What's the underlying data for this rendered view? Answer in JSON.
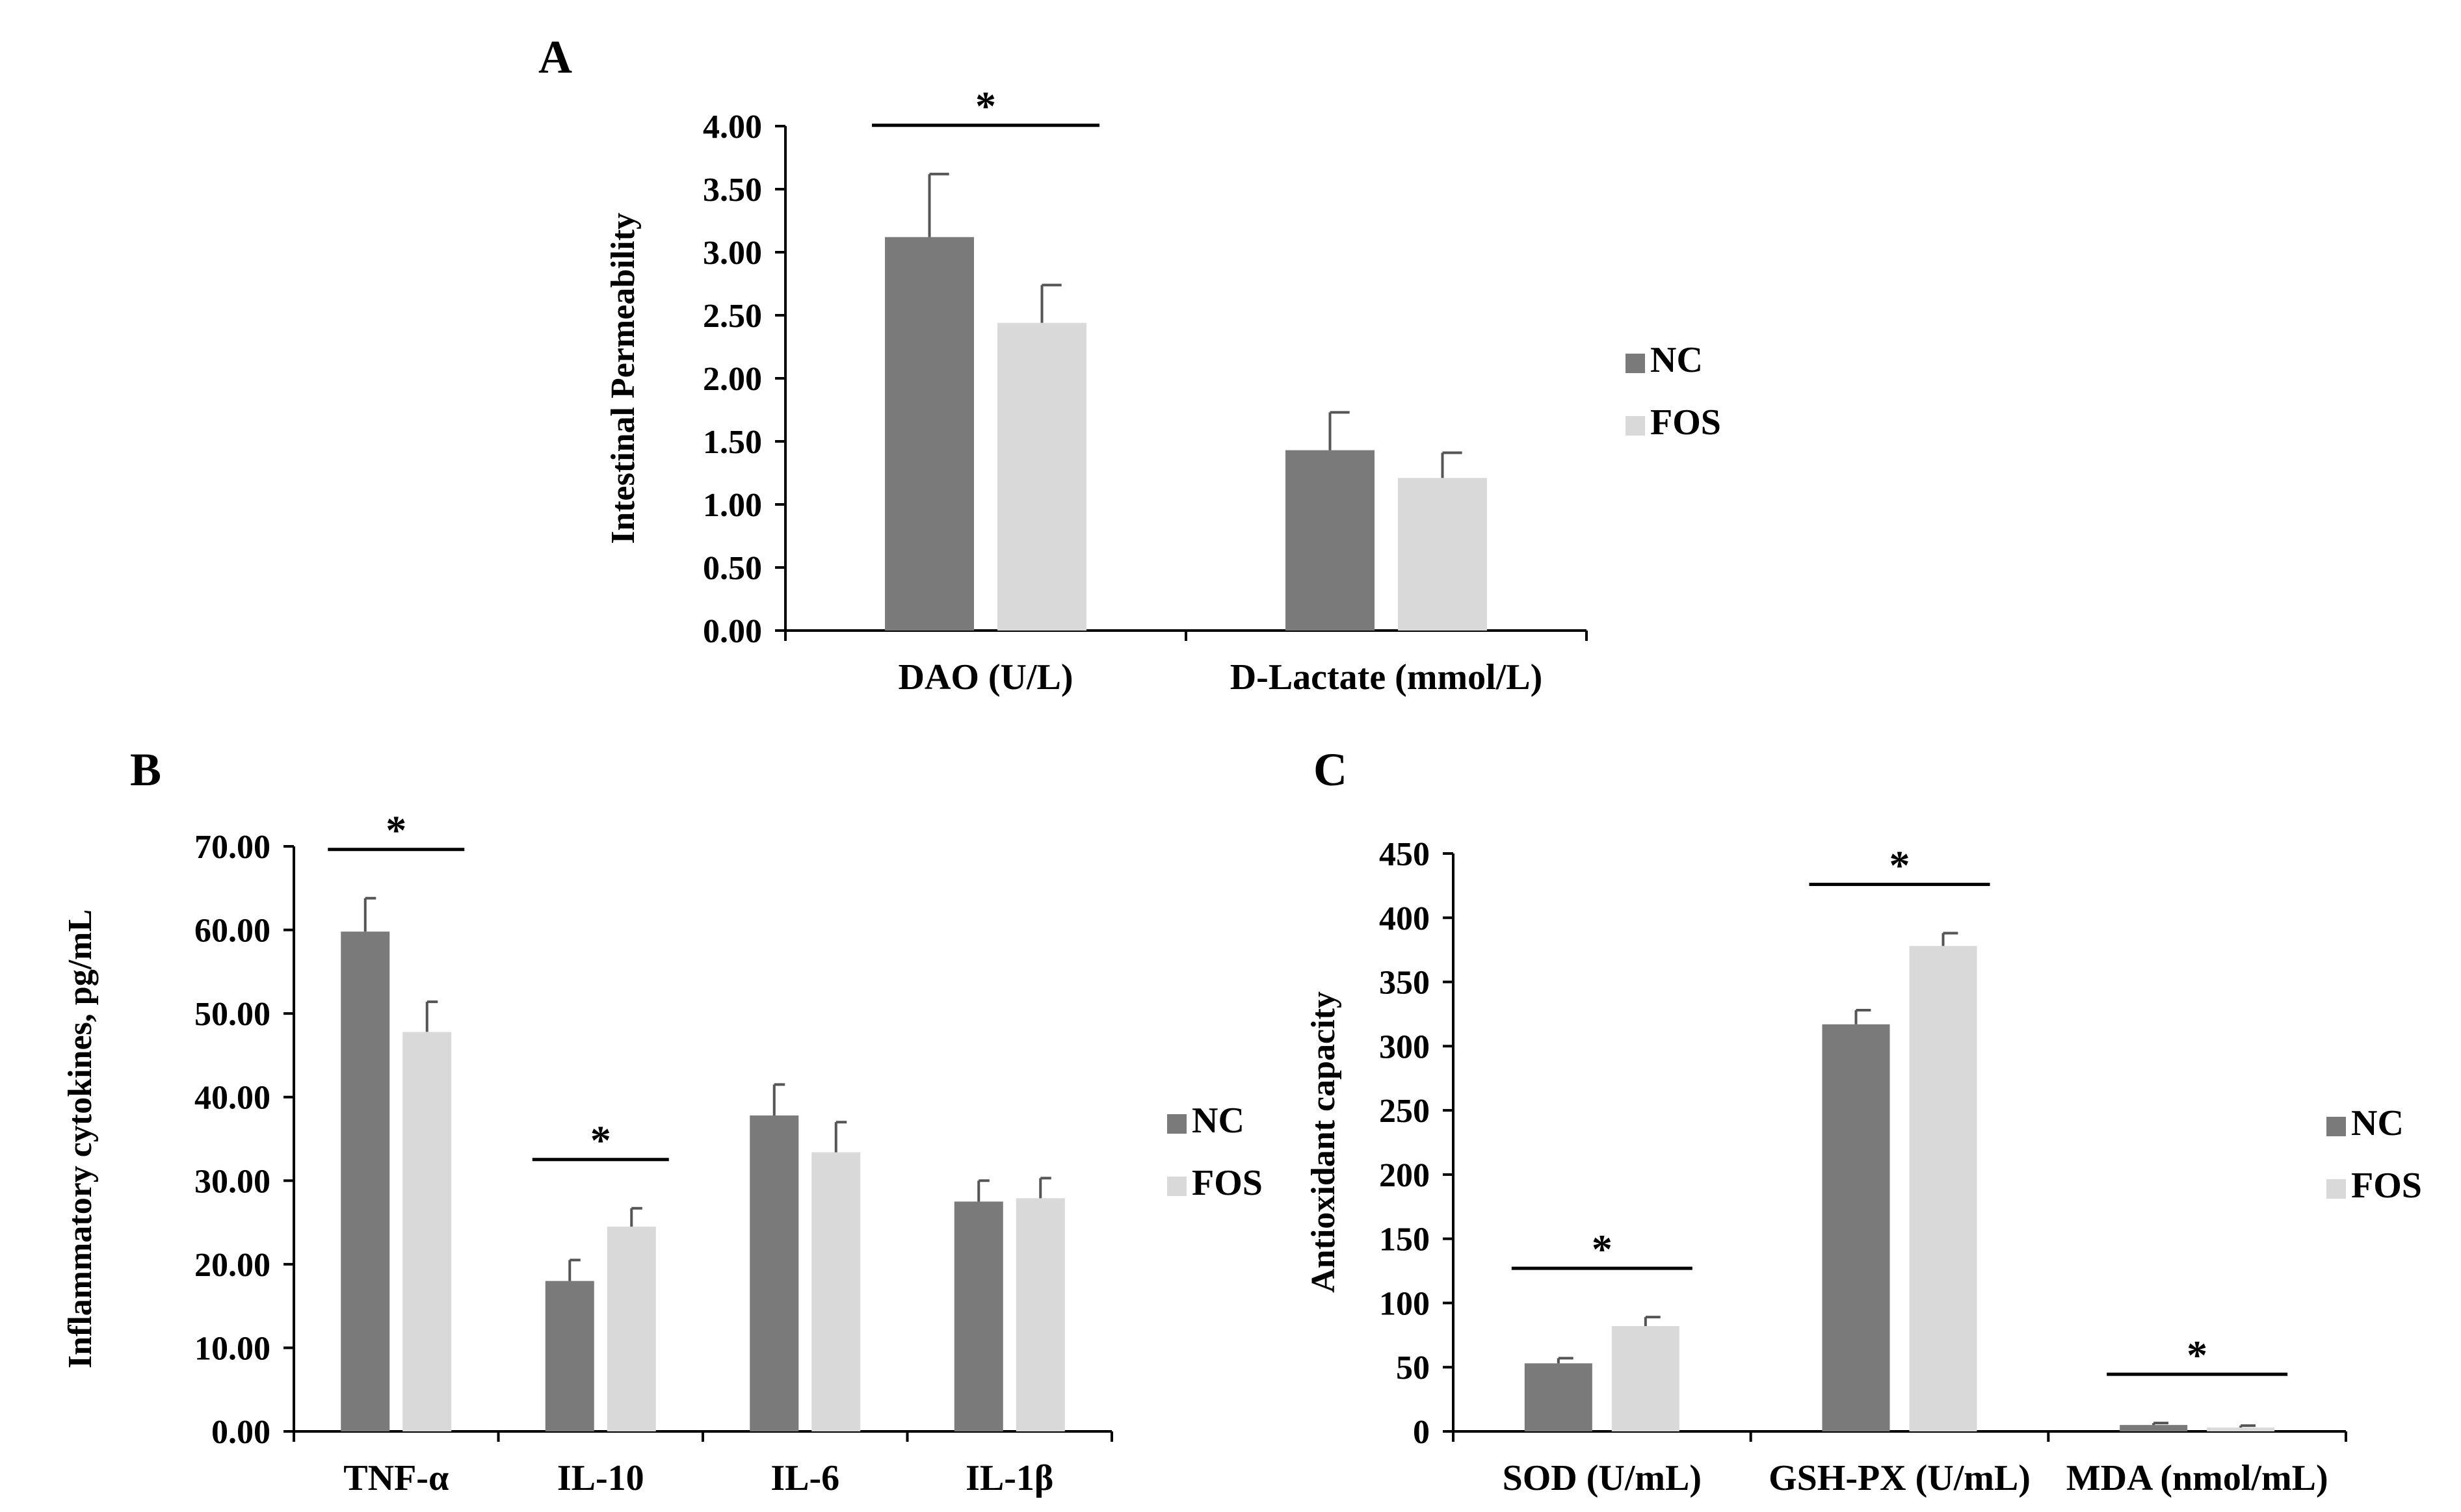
{
  "colors": {
    "NC": "#7a7a7a",
    "FOS": "#d9d9d9",
    "axis": "#000000"
  },
  "legend": {
    "NC": "NC",
    "FOS": "FOS"
  },
  "chart_data": [
    {
      "id": "A",
      "panel_label": "A",
      "type": "bar",
      "title": "",
      "ylabel": "Intestinal Permeability",
      "xlabel": "",
      "ylim": [
        0,
        4
      ],
      "tick_values": [
        0,
        0.5,
        1,
        1.5,
        2,
        2.5,
        3,
        3.5,
        4
      ],
      "tick_labels": [
        "0.00",
        "0.50",
        "1.00",
        "1.50",
        "2.00",
        "2.50",
        "3.00",
        "3.50",
        "4.00"
      ],
      "categories": [
        "DAO (U/L)",
        "D-Lactate (mmol/L)"
      ],
      "series": [
        {
          "name": "NC",
          "values": [
            3.12,
            1.43
          ],
          "errors": [
            0.5,
            0.3
          ]
        },
        {
          "name": "FOS",
          "values": [
            2.44,
            1.21
          ],
          "errors": [
            0.3,
            0.2
          ]
        }
      ],
      "significance": [
        {
          "category": 0,
          "label": "*"
        }
      ],
      "grid": false,
      "legend_position": "right"
    },
    {
      "id": "B",
      "panel_label": "B",
      "type": "bar",
      "title": "",
      "ylabel": "Inflammatory cytokines, pg/mL",
      "xlabel": "",
      "ylim": [
        0,
        70
      ],
      "tick_values": [
        0,
        10,
        20,
        30,
        40,
        50,
        60,
        70
      ],
      "tick_labels": [
        "0.00",
        "10.00",
        "20.00",
        "30.00",
        "40.00",
        "50.00",
        "60.00",
        "70.00"
      ],
      "categories": [
        "TNF-α",
        "IL-10",
        "IL-6",
        "IL-1β"
      ],
      "series": [
        {
          "name": "NC",
          "values": [
            59.8,
            18.0,
            37.8,
            27.5
          ],
          "errors": [
            4.0,
            2.5,
            3.7,
            2.5
          ]
        },
        {
          "name": "FOS",
          "values": [
            47.8,
            24.5,
            33.4,
            27.9
          ],
          "errors": [
            3.6,
            2.2,
            3.6,
            2.4
          ]
        }
      ],
      "significance": [
        {
          "category": 0,
          "label": "*"
        },
        {
          "category": 1,
          "label": "*"
        }
      ],
      "grid": false,
      "legend_position": "right"
    },
    {
      "id": "C",
      "panel_label": "C",
      "type": "bar",
      "title": "",
      "ylabel": "Antioxidant capacity",
      "xlabel": "",
      "ylim": [
        0,
        450
      ],
      "tick_values": [
        0,
        50,
        100,
        150,
        200,
        250,
        300,
        350,
        400,
        450
      ],
      "tick_labels": [
        "0",
        "50",
        "100",
        "150",
        "200",
        "250",
        "300",
        "350",
        "400",
        "450"
      ],
      "categories": [
        "SOD (U/mL)",
        "GSH-PX (U/mL)",
        "MDA (nmol/mL)"
      ],
      "series": [
        {
          "name": "NC",
          "values": [
            53,
            317,
            5
          ],
          "errors": [
            4,
            11,
            1.5
          ]
        },
        {
          "name": "FOS",
          "values": [
            82,
            378,
            3
          ],
          "errors": [
            7,
            10,
            1.5
          ]
        }
      ],
      "significance": [
        {
          "category": 0,
          "label": "*"
        },
        {
          "category": 1,
          "label": "*"
        },
        {
          "category": 2,
          "label": "*"
        }
      ],
      "grid": false,
      "legend_position": "right"
    }
  ]
}
